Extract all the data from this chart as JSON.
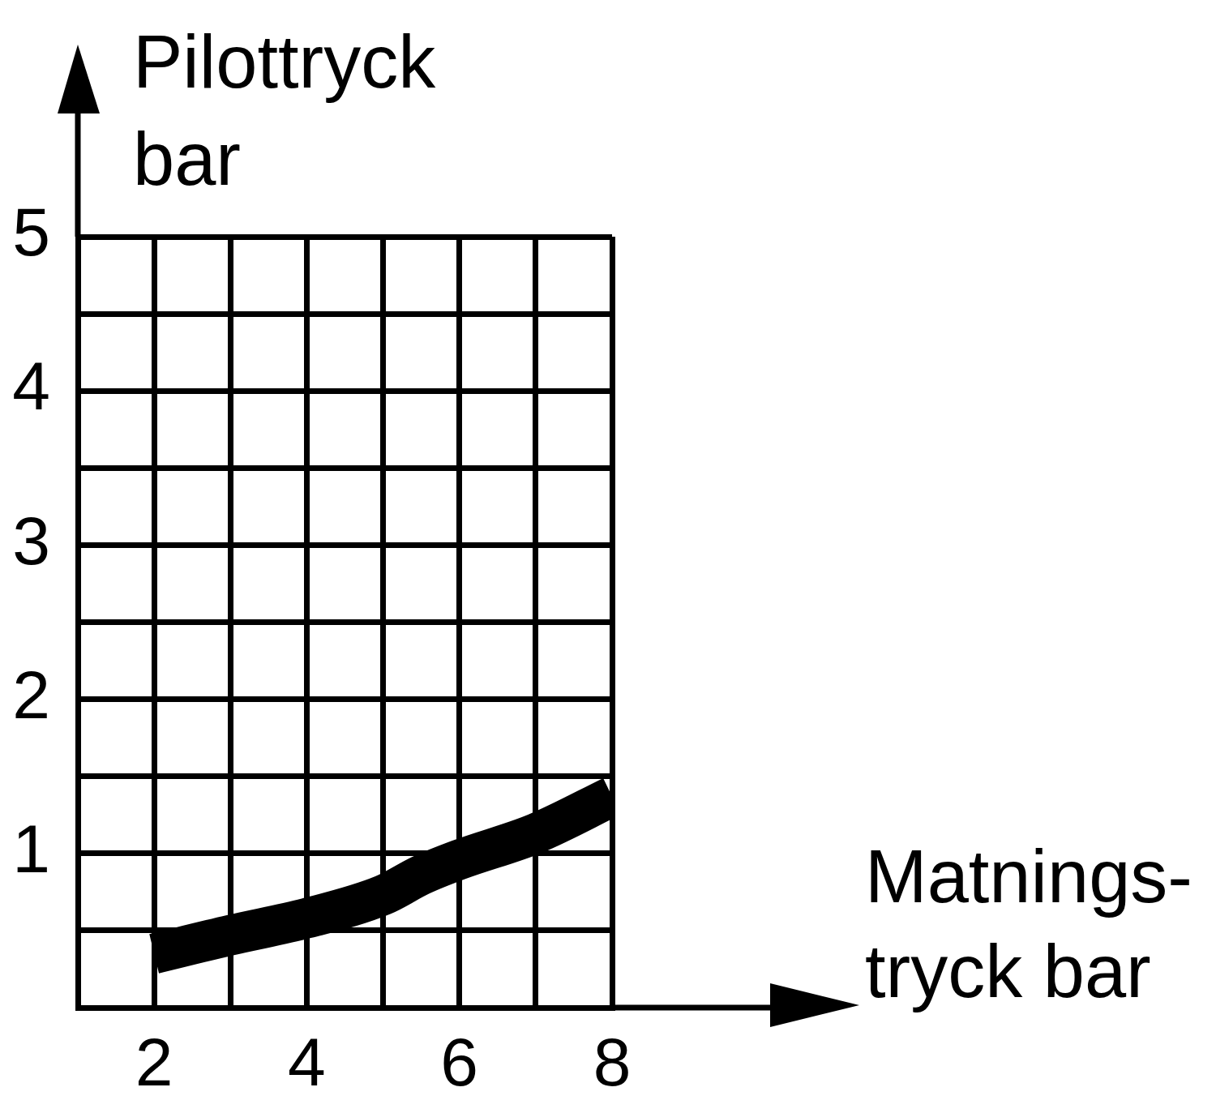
{
  "chart_data": {
    "type": "line",
    "xlabel": "Matnings-\ntryck bar",
    "ylabel": "Pilottryck\nbar",
    "x": [
      2,
      3,
      4,
      5,
      5.5,
      6,
      7,
      8
    ],
    "series": [
      {
        "color": "#000000",
        "values": [
          0.35,
          0.47,
          0.58,
          0.73,
          0.86,
          0.96,
          1.13,
          1.37
        ]
      }
    ],
    "xlim": [
      1,
      8
    ],
    "ylim": [
      0,
      5
    ],
    "xticks": [
      {
        "value": 1,
        "label": null
      },
      2,
      {
        "value": 3,
        "label": null
      },
      4,
      {
        "value": 5,
        "label": null
      },
      6,
      {
        "value": 7,
        "label": null
      },
      8
    ],
    "yticks": [
      {
        "value": 0,
        "label": null
      },
      {
        "value": 0.5,
        "label": null
      },
      1,
      {
        "value": 1.5,
        "label": null
      },
      2,
      {
        "value": 2.5,
        "label": null
      },
      3,
      {
        "value": 3.5,
        "label": null
      },
      4,
      {
        "value": 4.5,
        "label": null
      },
      5
    ],
    "grid": true
  }
}
